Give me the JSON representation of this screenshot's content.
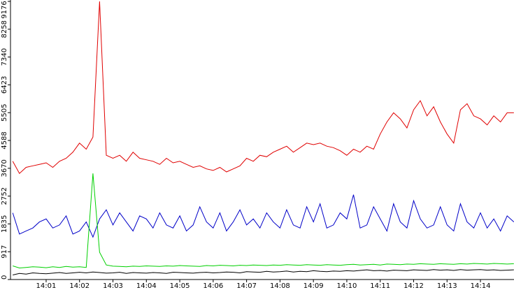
{
  "chart_data": {
    "type": "line",
    "xlim": [
      0,
      75
    ],
    "xticks": [
      {
        "value": 5,
        "label": "14:01"
      },
      {
        "value": 10,
        "label": "14:02"
      },
      {
        "value": 15,
        "label": "14:03"
      },
      {
        "value": 20,
        "label": "14:04"
      },
      {
        "value": 25,
        "label": "14:05"
      },
      {
        "value": 30,
        "label": "14:06"
      },
      {
        "value": 35,
        "label": "14:07"
      },
      {
        "value": 40,
        "label": "14:08"
      },
      {
        "value": 45,
        "label": "14:09"
      },
      {
        "value": 50,
        "label": "14:10"
      },
      {
        "value": 55,
        "label": "14:11"
      },
      {
        "value": 60,
        "label": "14:12"
      },
      {
        "value": 65,
        "label": "14:13"
      },
      {
        "value": 70,
        "label": "14:14"
      }
    ],
    "ylim": [
      0,
      9176
    ],
    "yticks": [
      0,
      917,
      1835,
      2752,
      3670,
      4588,
      5505,
      6423,
      7340,
      8258,
      9176
    ],
    "series": [
      {
        "color": "#e00000",
        "values": [
          3900,
          3500,
          3700,
          3750,
          3800,
          3850,
          3700,
          3900,
          4000,
          4200,
          4500,
          4300,
          4700,
          9176,
          4100,
          4000,
          4100,
          3900,
          4200,
          4000,
          3950,
          3900,
          3800,
          4000,
          3850,
          3900,
          3800,
          3700,
          3750,
          3650,
          3600,
          3700,
          3550,
          3650,
          3750,
          4000,
          3900,
          4100,
          4050,
          4200,
          4300,
          4400,
          4200,
          4350,
          4500,
          4450,
          4500,
          4400,
          4350,
          4250,
          4100,
          4300,
          4200,
          4400,
          4300,
          4800,
          5200,
          5500,
          5300,
          5000,
          5600,
          5900,
          5400,
          5700,
          5200,
          4800,
          4500,
          5600,
          5800,
          5400,
          5300,
          5100,
          5400,
          5200,
          5500,
          5500
        ]
      },
      {
        "color": "#0000c8",
        "values": [
          2200,
          1500,
          1600,
          1700,
          1900,
          2000,
          1700,
          1800,
          2100,
          1500,
          1600,
          1900,
          1400,
          2000,
          2300,
          1800,
          2200,
          1900,
          1600,
          2100,
          2000,
          1700,
          2200,
          1800,
          1700,
          2100,
          1600,
          1800,
          2400,
          1900,
          1700,
          2200,
          1600,
          1900,
          2300,
          1800,
          2000,
          1700,
          2200,
          1900,
          1700,
          2300,
          1800,
          1700,
          2400,
          1900,
          2500,
          1700,
          1800,
          2200,
          2000,
          2800,
          1700,
          1800,
          2400,
          2000,
          1600,
          2500,
          1900,
          1700,
          2600,
          2000,
          1700,
          1800,
          2400,
          1800,
          1600,
          2500,
          1900,
          1700,
          2200,
          1700,
          2000,
          1600,
          2100,
          1900
        ]
      },
      {
        "color": "#00d000",
        "values": [
          450,
          380,
          400,
          420,
          410,
          390,
          420,
          400,
          430,
          410,
          420,
          400,
          3500,
          900,
          480,
          440,
          430,
          420,
          440,
          430,
          450,
          440,
          430,
          450,
          440,
          460,
          450,
          440,
          430,
          460,
          450,
          470,
          460,
          450,
          470,
          460,
          480,
          470,
          460,
          480,
          470,
          490,
          480,
          470,
          490,
          480,
          470,
          490,
          480,
          470,
          490,
          500,
          480,
          490,
          500,
          480,
          510,
          500,
          490,
          510,
          500,
          520,
          510,
          500,
          520,
          510,
          500,
          520,
          510,
          530,
          520,
          510,
          530,
          520,
          510,
          520
        ]
      },
      {
        "color": "#000000",
        "values": [
          150,
          200,
          180,
          220,
          200,
          190,
          210,
          230,
          200,
          220,
          240,
          220,
          250,
          230,
          210,
          220,
          240,
          200,
          230,
          220,
          210,
          230,
          220,
          200,
          240,
          230,
          220,
          210,
          230,
          240,
          220,
          230,
          250,
          240,
          220,
          260,
          250,
          240,
          270,
          250,
          260,
          280,
          250,
          270,
          260,
          290,
          270,
          260,
          280,
          270,
          290,
          280,
          300,
          320,
          290,
          300,
          280,
          310,
          300,
          290,
          320,
          310,
          300,
          330,
          310,
          320,
          300,
          330,
          310,
          320,
          330,
          310,
          320,
          300,
          310,
          320
        ]
      }
    ]
  }
}
